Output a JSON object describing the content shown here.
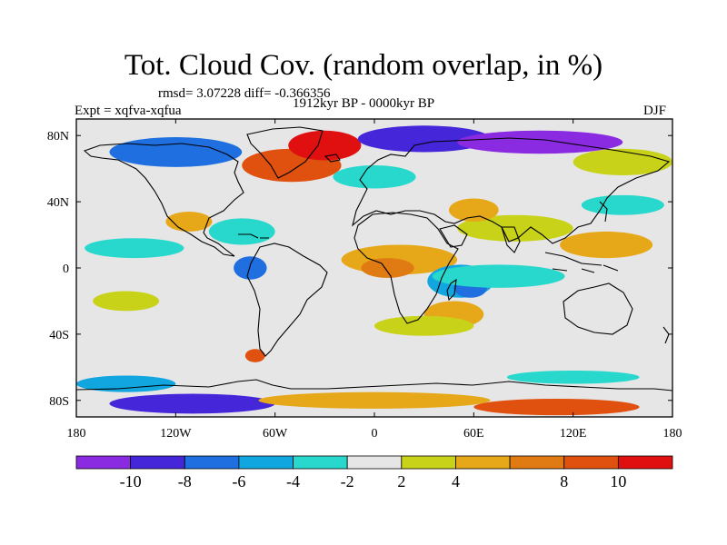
{
  "title": "Tot. Cloud Cov. (random overlap, in %)",
  "stats_line": "rmsd= 3.07228 diff= -0.366356",
  "period": "1912kyr BP - 0000kyr BP",
  "experiment": "Expt = xqfva-xqfua",
  "season": "DJF",
  "map": {
    "projection": "cylindrical equidistant",
    "lon_range": [
      -180,
      180
    ],
    "lat_range": [
      -90,
      90
    ],
    "lon_ticks": [
      {
        "value": -180,
        "label": "180"
      },
      {
        "value": -120,
        "label": "120W"
      },
      {
        "value": -60,
        "label": "60W"
      },
      {
        "value": 0,
        "label": "0"
      },
      {
        "value": 60,
        "label": "60E"
      },
      {
        "value": 120,
        "label": "120E"
      },
      {
        "value": 180,
        "label": "180"
      }
    ],
    "lat_ticks": [
      {
        "value": 80,
        "label": "80N"
      },
      {
        "value": 40,
        "label": "40N"
      },
      {
        "value": 0,
        "label": "0"
      },
      {
        "value": -40,
        "label": "40S"
      },
      {
        "value": -80,
        "label": "80S"
      }
    ],
    "background_color": "#e6e6e6",
    "coastline_color": "#000000",
    "anomaly_regions": [
      {
        "lon": 15,
        "lat": 5,
        "rx": 35,
        "ry": 9,
        "level": 4
      },
      {
        "lon": 8,
        "lat": 0,
        "rx": 16,
        "ry": 6,
        "level": 6
      },
      {
        "lon": 52,
        "lat": -8,
        "rx": 20,
        "ry": 10,
        "level": -4
      },
      {
        "lon": 58,
        "lat": -12,
        "rx": 10,
        "ry": 6,
        "level": -6
      },
      {
        "lon": 48,
        "lat": -28,
        "rx": 18,
        "ry": 8,
        "level": 4
      },
      {
        "lon": 75,
        "lat": -5,
        "rx": 40,
        "ry": 7,
        "level": -2
      },
      {
        "lon": 85,
        "lat": 24,
        "rx": 35,
        "ry": 8,
        "level": 2
      },
      {
        "lon": 60,
        "lat": 35,
        "rx": 15,
        "ry": 7,
        "level": 4
      },
      {
        "lon": 140,
        "lat": 14,
        "rx": 28,
        "ry": 8,
        "level": 4
      },
      {
        "lon": 150,
        "lat": 38,
        "rx": 25,
        "ry": 6,
        "level": -2
      },
      {
        "lon": -145,
        "lat": 12,
        "rx": 30,
        "ry": 6,
        "level": -2
      },
      {
        "lon": -80,
        "lat": 22,
        "rx": 20,
        "ry": 8,
        "level": -2
      },
      {
        "lon": -112,
        "lat": 28,
        "rx": 14,
        "ry": 6,
        "level": 4
      },
      {
        "lon": -75,
        "lat": 0,
        "rx": 10,
        "ry": 7,
        "level": -6
      },
      {
        "lon": -150,
        "lat": -20,
        "rx": 20,
        "ry": 6,
        "level": 2
      },
      {
        "lon": 30,
        "lat": -35,
        "rx": 30,
        "ry": 6,
        "level": 2
      },
      {
        "lon": -72,
        "lat": -53,
        "rx": 6,
        "ry": 4,
        "level": 8
      },
      {
        "lon": -50,
        "lat": 62,
        "rx": 30,
        "ry": 10,
        "level": 8
      },
      {
        "lon": -30,
        "lat": 74,
        "rx": 22,
        "ry": 9,
        "level": 10
      },
      {
        "lon": -120,
        "lat": 70,
        "rx": 40,
        "ry": 9,
        "level": -6
      },
      {
        "lon": 30,
        "lat": 78,
        "rx": 40,
        "ry": 8,
        "level": -8
      },
      {
        "lon": 100,
        "lat": 76,
        "rx": 50,
        "ry": 7,
        "level": -10
      },
      {
        "lon": 150,
        "lat": 64,
        "rx": 30,
        "ry": 8,
        "level": 2
      },
      {
        "lon": 0,
        "lat": 55,
        "rx": 25,
        "ry": 7,
        "level": -2
      },
      {
        "lon": -110,
        "lat": -82,
        "rx": 50,
        "ry": 6,
        "level": -8
      },
      {
        "lon": 0,
        "lat": -80,
        "rx": 70,
        "ry": 5,
        "level": 4
      },
      {
        "lon": 110,
        "lat": -84,
        "rx": 50,
        "ry": 5,
        "level": 8
      },
      {
        "lon": -150,
        "lat": -70,
        "rx": 30,
        "ry": 5,
        "level": -4
      },
      {
        "lon": 120,
        "lat": -66,
        "rx": 40,
        "ry": 4,
        "level": -2
      }
    ]
  },
  "colorbar": {
    "colors": [
      "#8a2be2",
      "#4527d9",
      "#1f6fe0",
      "#12a6e0",
      "#29d8cc",
      "#e6e6e6",
      "#c8d219",
      "#e6a819",
      "#e07a12",
      "#e0500f",
      "#e01010"
    ],
    "labels": [
      "-10",
      "-8",
      "-6",
      "-4",
      "-2",
      "2",
      "4",
      "8",
      "10"
    ]
  }
}
